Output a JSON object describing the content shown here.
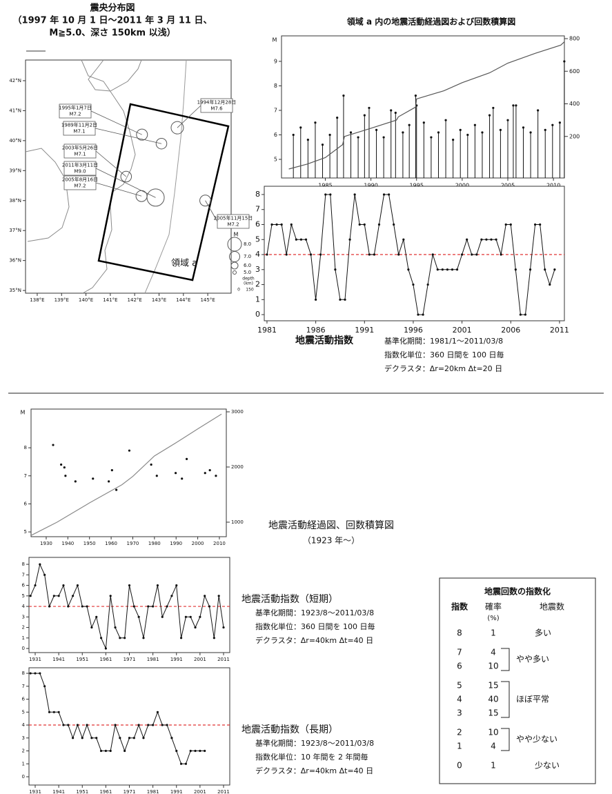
{
  "chart_data": [
    {
      "type": "map",
      "title": [
        "震央分布図",
        "（1997 年 10 月 1 日～2011 年 3 月 11 日、",
        "M≧5.0、深さ 150km 以浅）"
      ],
      "xlim": [
        137.52,
        145.96
      ],
      "ylim": [
        34.91,
        42.69
      ],
      "xticks": [
        {
          "value": 138,
          "label": "138°E"
        },
        {
          "value": 139,
          "label": "139°E"
        },
        {
          "value": 140,
          "label": "140°E"
        },
        {
          "value": 141,
          "label": "141°E"
        },
        {
          "value": 142,
          "label": "142°E"
        },
        {
          "value": 143,
          "label": "143°E"
        },
        {
          "value": 144,
          "label": "144°E"
        },
        {
          "value": 145,
          "label": "145°E"
        }
      ],
      "yticks": [
        {
          "value": 35,
          "label": "35°N"
        },
        {
          "value": 36,
          "label": "36°N"
        },
        {
          "value": 37,
          "label": "37°N"
        },
        {
          "value": 38,
          "label": "38°N"
        },
        {
          "value": 39,
          "label": "39°N"
        },
        {
          "value": 40,
          "label": "40°N"
        },
        {
          "value": 41,
          "label": "41°N"
        },
        {
          "value": 42,
          "label": "42°N"
        }
      ],
      "series": [
        {
          "color": "#555555",
          "x": [
            142.3,
            143.1,
            141.65,
            142.86,
            142.28,
            143.75,
            144.9
          ],
          "values": [
            40.2,
            39.9,
            38.8,
            38.1,
            38.15,
            40.43,
            38.0
          ],
          "sizes": [
            7.2,
            7.1,
            7.1,
            9.0,
            7.2,
            7.6,
            7.2
          ],
          "dates": [
            "1995年1月7日",
            "1989年11月2日",
            "2003年5月26日",
            "2011年3月11日",
            "2005年8月16日",
            "1994年12月28日",
            "2005年11月15日"
          ],
          "size_labels": [
            "M7.2",
            "M7.1",
            "M7.1",
            "M9.0",
            "M7.2",
            "M7.6",
            "M7.2"
          ]
        }
      ],
      "region_label": "領域 a",
      "size_legend": {
        "title": "M",
        "ticks": [
          {
            "value": 8,
            "label": "8.0"
          },
          {
            "value": 7,
            "label": "7.0"
          },
          {
            "value": 6,
            "label": "6.0"
          },
          {
            "value": 5,
            "label": "5.0"
          }
        ]
      },
      "depth_legend": {
        "title": [
          "depth",
          "(km)"
        ],
        "ticks": [
          0,
          150
        ]
      }
    },
    {
      "type": "stick",
      "title": "領域 a 内の地震活動経過図および回数積算図",
      "y_label": "M",
      "xlim": [
        1980.2,
        2011.2
      ],
      "ylim": [
        4.24,
        10.04
      ],
      "y2lim": [
        -55,
        817
      ],
      "xticks": [
        1985,
        1990,
        1995,
        2000,
        2005,
        2010
      ],
      "yticks": [
        5,
        6,
        7,
        8,
        9
      ],
      "y2ticks": [
        200,
        400,
        600,
        800
      ],
      "series": [
        {
          "style": "stick",
          "color": "#111111",
          "x": [
            1981.5,
            1982.3,
            1983.1,
            1983.9,
            1984.7,
            1985.5,
            1986.3,
            1987.0,
            1987.8,
            1988.6,
            1989.3,
            1989.8,
            1990.6,
            1991.4,
            1992.2,
            1992.7,
            1993.5,
            1994.2,
            1994.9,
            1995.0,
            1995.8,
            1996.6,
            1997.4,
            1998.2,
            1999.0,
            1999.8,
            2000.6,
            2001.4,
            2002.2,
            2003.0,
            2003.4,
            2004.2,
            2005.0,
            2005.6,
            2005.9,
            2006.7,
            2007.5,
            2008.3,
            2009.1,
            2009.9,
            2010.7,
            2011.19
          ],
          "values": [
            6.0,
            6.3,
            5.8,
            6.5,
            5.6,
            6.0,
            6.7,
            7.6,
            6.1,
            5.9,
            6.8,
            7.1,
            6.2,
            5.9,
            7.0,
            6.9,
            6.1,
            6.4,
            7.6,
            7.2,
            6.5,
            5.9,
            6.1,
            6.6,
            5.8,
            6.2,
            6.0,
            6.4,
            6.1,
            6.8,
            7.1,
            6.2,
            6.6,
            7.2,
            7.2,
            6.3,
            6.1,
            7.0,
            6.2,
            6.4,
            6.5,
            9.0
          ]
        },
        {
          "axis": "y2",
          "color": "#555555",
          "x": [
            1981,
            1983,
            1985,
            1986.9,
            1987.1,
            1990,
            1992.8,
            1993,
            1994.9,
            1995,
            1998,
            2000,
            2003,
            2005,
            2008,
            2010.8,
            2011.19
          ],
          "values": [
            0,
            30,
            70,
            150,
            200,
            250,
            300,
            320,
            380,
            430,
            480,
            530,
            590,
            650,
            710,
            760,
            780
          ]
        }
      ]
    },
    {
      "type": "line",
      "caption": "地震活動指数",
      "notes": [
        "基準化期間：1981/1～2011/03/8",
        "指数化単位：360 日間を 100 日毎",
        "デクラスタ：Δr=20km Δt=20 日"
      ],
      "xlim": [
        1980.72,
        2011.5
      ],
      "ylim": [
        -0.41,
        8.55
      ],
      "xticks": [
        1981,
        1986,
        1991,
        1996,
        2001,
        2006,
        2011
      ],
      "yticks": [
        0,
        1,
        2,
        3,
        4,
        5,
        6,
        7,
        8
      ],
      "ref_line": 4,
      "ref_color": "#e03030",
      "color": "#111111",
      "x": [
        1981,
        1981.5,
        1982,
        1982.5,
        1983,
        1983.5,
        1984,
        1984.5,
        1985,
        1985.5,
        1986,
        1986.5,
        1987,
        1987.5,
        1988,
        1988.5,
        1989,
        1989.5,
        1990,
        1990.5,
        1991,
        1991.5,
        1992,
        1992.5,
        1993,
        1993.5,
        1994,
        1994.5,
        1995,
        1995.5,
        1996,
        1996.5,
        1997,
        1997.5,
        1998,
        1998.5,
        1999,
        1999.5,
        2000,
        2000.5,
        2001,
        2001.5,
        2002,
        2002.5,
        2003,
        2003.5,
        2004,
        2004.5,
        2005,
        2005.5,
        2006,
        2006.5,
        2007,
        2007.5,
        2008,
        2008.5,
        2009,
        2009.5,
        2010,
        2010.5
      ],
      "values": [
        4,
        6,
        6,
        6,
        4,
        6,
        5,
        5,
        5,
        4,
        1,
        4,
        8,
        8,
        3,
        1,
        1,
        5,
        8,
        6,
        6,
        4,
        4,
        6,
        8,
        8,
        6,
        4,
        5,
        3,
        2,
        0,
        0,
        2,
        4,
        3,
        3,
        3,
        3,
        3,
        4,
        5,
        4,
        4,
        5,
        5,
        5,
        5,
        4,
        6,
        6,
        3,
        0,
        0,
        3,
        6,
        6,
        3,
        2,
        3
      ]
    },
    {
      "type": "stick",
      "caption": [
        "地震活動経過図、回数積算図",
        "（1923 年～）"
      ],
      "y_label": "M",
      "xlim": [
        1923.0,
        2013.2
      ],
      "ylim": [
        4.83,
        9.38
      ],
      "y2lim": [
        737,
        3050
      ],
      "xticks": [
        1930,
        1940,
        1950,
        1960,
        1970,
        1980,
        1990,
        2000,
        2010
      ],
      "yticks": [
        5,
        6,
        7,
        8
      ],
      "y2ticks": [
        1000,
        2000,
        3000
      ],
      "series": [
        {
          "style": "dot",
          "color": "#111111",
          "x": [
            1933.2,
            1936.9,
            1938.4,
            1938.9,
            1943.5,
            1951.6,
            1958.9,
            1960.4,
            1962.4,
            1968.4,
            1978.5,
            1981.1,
            1989.8,
            1992.7,
            1994.9,
            2003.4,
            2005.6,
            2008.4
          ],
          "values": [
            8.1,
            7.4,
            7.3,
            7.0,
            6.8,
            6.9,
            6.8,
            7.2,
            6.5,
            7.9,
            7.4,
            7.0,
            7.1,
            6.9,
            7.6,
            7.1,
            7.2,
            7.0
          ]
        },
        {
          "axis": "y2",
          "color": "#888888",
          "x": [
            1923,
            1935,
            1950,
            1965,
            1970,
            1980,
            1990,
            2000,
            2011
          ],
          "values": [
            760,
            1000,
            1350,
            1680,
            1830,
            2200,
            2440,
            2690,
            2960
          ]
        }
      ]
    },
    {
      "type": "line",
      "caption": "地震活動指数（短期）",
      "notes": [
        "基準化期間：1923/8～2011/03/8",
        "指数化単位：360 日間を 100 日毎",
        "デクラスタ：Δr=40km Δt=40 日"
      ],
      "xlim": [
        1928.36,
        2013.64
      ],
      "ylim": [
        -0.39,
        8.66
      ],
      "xticks": [
        1931,
        1941,
        1951,
        1961,
        1971,
        1981,
        1991,
        2001,
        2011
      ],
      "yticks": [
        0,
        1,
        2,
        3,
        4,
        5,
        6,
        7,
        8
      ],
      "ref_line": 4,
      "ref_color": "#e03030",
      "color": "#111111",
      "x": [
        1929,
        1931,
        1933,
        1935,
        1937,
        1939,
        1941,
        1943,
        1945,
        1947,
        1949,
        1951,
        1953,
        1955,
        1957,
        1959,
        1961,
        1963,
        1965,
        1967,
        1969,
        1971,
        1973,
        1975,
        1977,
        1979,
        1981,
        1983,
        1985,
        1987,
        1989,
        1991,
        1993,
        1995,
        1997,
        1999,
        2001,
        2003,
        2005,
        2007,
        2009,
        2011
      ],
      "values": [
        5,
        6,
        8,
        7,
        4,
        5,
        5,
        6,
        4,
        5,
        6,
        4,
        4,
        2,
        3,
        1,
        0,
        5,
        2,
        1,
        1,
        6,
        4,
        3,
        1,
        4,
        4,
        6,
        3,
        4,
        5,
        6,
        1,
        3,
        3,
        2,
        3,
        5,
        4,
        1,
        5,
        2
      ]
    },
    {
      "type": "line",
      "caption": "地震活動指数（長期）",
      "notes": [
        "基準化期間：1923/8～2011/03/8",
        "指数化単位：10 年間を 2 年間毎",
        "デクラスタ：Δr=40km Δt=40 日"
      ],
      "xlim": [
        1928.36,
        2013.64
      ],
      "ylim": [
        -0.64,
        8.43
      ],
      "xticks": [
        1931,
        1941,
        1951,
        1961,
        1971,
        1981,
        1991,
        2001,
        2011
      ],
      "yticks": [
        0,
        1,
        2,
        3,
        4,
        5,
        6,
        7,
        8
      ],
      "ref_line": 4,
      "ref_color": "#e03030",
      "color": "#111111",
      "x": [
        1929,
        1931,
        1933,
        1935,
        1937,
        1939,
        1941,
        1943,
        1945,
        1947,
        1949,
        1951,
        1953,
        1955,
        1957,
        1959,
        1961,
        1963,
        1965,
        1967,
        1969,
        1971,
        1973,
        1975,
        1977,
        1979,
        1981,
        1983,
        1985,
        1987,
        1989,
        1991,
        1993,
        1995,
        1997,
        1999,
        2001,
        2003
      ],
      "values": [
        8,
        8,
        8,
        7,
        5,
        5,
        5,
        4,
        4,
        3,
        4,
        3,
        4,
        3,
        3,
        2,
        2,
        2,
        4,
        3,
        2,
        3,
        3,
        4,
        3,
        4,
        4,
        5,
        4,
        4,
        3,
        2,
        1,
        1,
        2,
        2,
        2,
        2
      ]
    }
  ],
  "table": {
    "title": "地震回数の指数化",
    "headers": [
      "指数",
      "確率",
      "地震数"
    ],
    "unit": "(%)",
    "groups": [
      {
        "label": "多い",
        "rows": [
          {
            "index": 8,
            "prob": 1
          }
        ]
      },
      {
        "label": "やや多い",
        "rows": [
          {
            "index": 7,
            "prob": 4
          },
          {
            "index": 6,
            "prob": 10
          }
        ]
      },
      {
        "label": "ほぼ平常",
        "rows": [
          {
            "index": 5,
            "prob": 15
          },
          {
            "index": 4,
            "prob": 40
          },
          {
            "index": 3,
            "prob": 15
          }
        ]
      },
      {
        "label": "やや少ない",
        "rows": [
          {
            "index": 2,
            "prob": 10
          },
          {
            "index": 1,
            "prob": 4
          }
        ]
      },
      {
        "label": "少ない",
        "rows": [
          {
            "index": 0,
            "prob": 1
          }
        ]
      }
    ]
  }
}
